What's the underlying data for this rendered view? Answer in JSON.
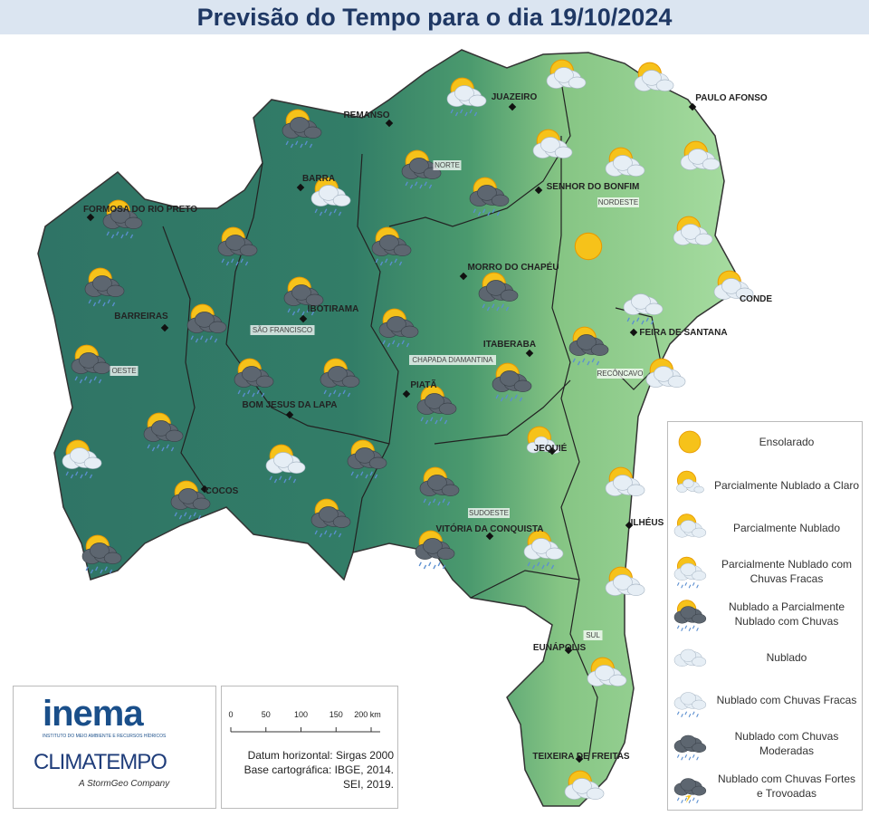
{
  "title": "Previsão do Tempo para o dia 19/10/2024",
  "cities": [
    {
      "name": "REMANSO"
    },
    {
      "name": "JUAZEIRO"
    },
    {
      "name": "PAULO AFONSO"
    },
    {
      "name": "BARRA"
    },
    {
      "name": "SENHOR DO BONFIM"
    },
    {
      "name": "FORMOSA DO RIO PRETO"
    },
    {
      "name": "MORRO DO CHAPÉU"
    },
    {
      "name": "BARREIRAS"
    },
    {
      "name": "IBOTIRAMA"
    },
    {
      "name": "CONDE"
    },
    {
      "name": "FEIRA DE SANTANA"
    },
    {
      "name": "ITABERABA"
    },
    {
      "name": "PIATÃ"
    },
    {
      "name": "BOM JESUS DA LAPA"
    },
    {
      "name": "JEQUIÉ"
    },
    {
      "name": "COCOS"
    },
    {
      "name": "VITÓRIA DA CONQUISTA"
    },
    {
      "name": "ILHÉUS"
    },
    {
      "name": "EUNÁPOLIS"
    },
    {
      "name": "TEIXEIRA DE FREITAS"
    }
  ],
  "regions": [
    "NORTE",
    "NORDESTE",
    "SÃO FRANCISCO",
    "OESTE",
    "CHAPADA DIAMANTINA",
    "RECÔNCAVO",
    "SUDOESTE",
    "SUL"
  ],
  "legend": [
    "Ensolarado",
    "Parcialmente Nublado a Claro",
    "Parcialmente Nublado",
    "Parcialmente Nublado com Chuvas Fracas",
    "Nublado a Parcialmente Nublado com Chuvas",
    "Nublado",
    "Nublado com Chuvas Fracas",
    "Nublado com Chuvas Moderadas",
    "Nublado com Chuvas Fortes e Trovoadas"
  ],
  "scale": [
    "0",
    "50",
    "100",
    "150",
    "200 km"
  ],
  "credits": [
    "Datum horizontal: Sirgas 2000",
    "Base cartográfica: IBGE, 2014.",
    "SEI, 2019."
  ],
  "logos": {
    "inema": "inema",
    "inema_sub": "INSTITUTO DO MEIO AMBIENTE E RECURSOS HÍDRICOS",
    "climatempo": "CLIMATEMPO",
    "climatempo_sub": "A StormGeo Company"
  }
}
